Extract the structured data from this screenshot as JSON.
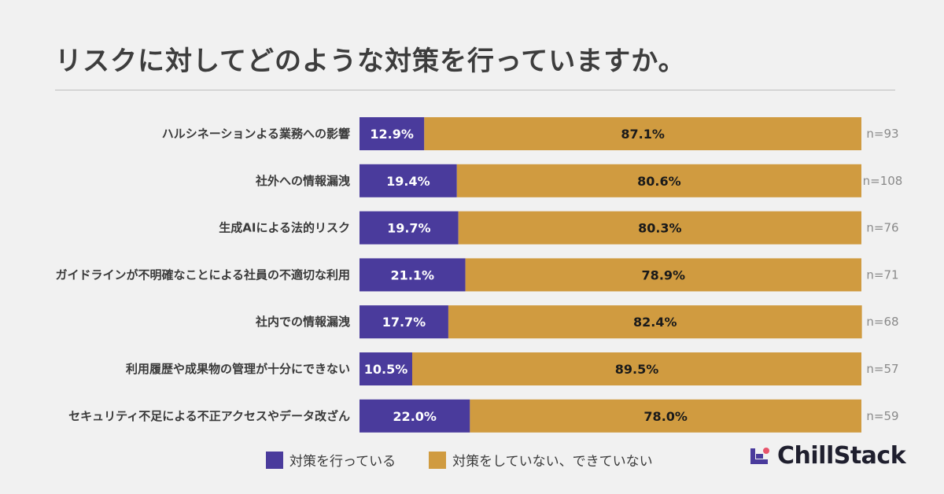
{
  "title": "リスクに対してどのような対策を行っていますか。",
  "colors": {
    "done": "#4a3b9c",
    "not_done": "#d09b40",
    "background": "#f1f1f1"
  },
  "legend": {
    "done": "対策を行っている",
    "not_done": "対策をしていない、できていない"
  },
  "logo": {
    "text": "ChillStack",
    "icon": "chillstack-logo-icon"
  },
  "chart_data": {
    "type": "bar",
    "orientation": "horizontal",
    "stacked": true,
    "percent": true,
    "categories": [
      "ハルシネーションよる業務への影響",
      "社外への情報漏洩",
      "生成AIによる法的リスク",
      "ガイドラインが不明確なことによる社員の不適切な利用",
      "社内での情報漏洩",
      "利用履歴や成果物の管理が十分にできない",
      "セキュリティ不足による不正アクセスやデータ改ざん"
    ],
    "series": [
      {
        "name": "対策を行っている",
        "values": [
          12.9,
          19.4,
          19.7,
          21.1,
          17.7,
          10.5,
          22.0
        ],
        "labels": [
          "12.9%",
          "19.4%",
          "19.7%",
          "21.1%",
          "17.7%",
          "10.5%",
          "22.0%"
        ]
      },
      {
        "name": "対策をしていない、できていない",
        "values": [
          87.1,
          80.6,
          80.3,
          78.9,
          82.4,
          89.5,
          78.0
        ],
        "labels": [
          "87.1%",
          "80.6%",
          "80.3%",
          "78.9%",
          "82.4%",
          "89.5%",
          "78.0%"
        ]
      }
    ],
    "n_labels": [
      "n=93",
      "n=108",
      "n=76",
      "n=71",
      "n=68",
      "n=57",
      "n=59"
    ],
    "xlim": [
      0,
      100
    ],
    "legend_position": "bottom"
  }
}
